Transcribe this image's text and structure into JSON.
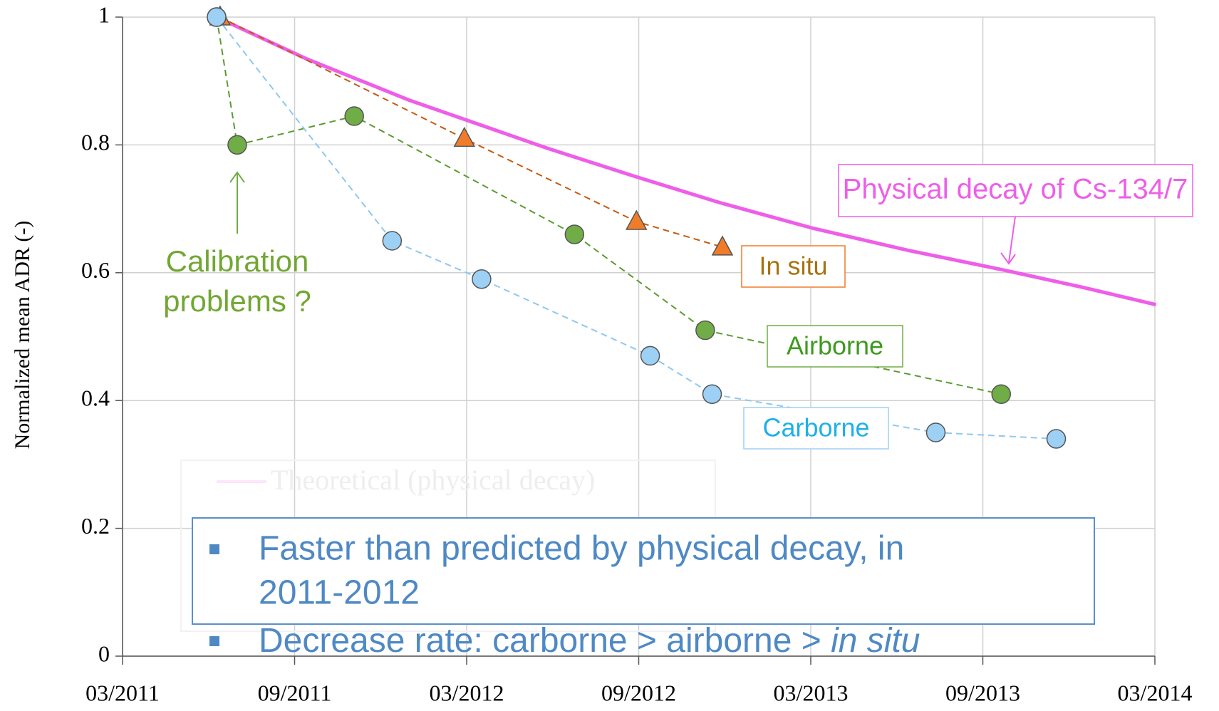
{
  "chart_data": {
    "type": "line",
    "y_label": "Normalized mean ADR (-)",
    "xlim": [
      2011.1667,
      2014.1667
    ],
    "xticks": [
      {
        "value": 2011.1667,
        "label": "03/2011"
      },
      {
        "value": 2011.6667,
        "label": "09/2011"
      },
      {
        "value": 2012.1667,
        "label": "03/2012"
      },
      {
        "value": 2012.6667,
        "label": "09/2012"
      },
      {
        "value": 2013.1667,
        "label": "03/2013"
      },
      {
        "value": 2013.6667,
        "label": "09/2013"
      },
      {
        "value": 2014.1667,
        "label": "03/2014"
      }
    ],
    "ylim": [
      0,
      1
    ],
    "yticks": [
      0,
      0.2,
      0.4,
      0.6,
      0.8,
      1
    ],
    "grid": true,
    "series": [
      {
        "name": "Theoretical  (physical decay)",
        "color": "#ee5ee8",
        "marker": "none",
        "x": [
          2011.44,
          2011.7,
          2012.0,
          2012.16,
          2012.4,
          2012.66,
          2012.9,
          2013.17,
          2013.45,
          2013.72,
          2013.95,
          2014.17
        ],
        "values": [
          1.0,
          0.935,
          0.87,
          0.84,
          0.795,
          0.75,
          0.71,
          0.67,
          0.635,
          0.605,
          0.578,
          0.55
        ]
      },
      {
        "name": "In situ",
        "color": "#f07c2a",
        "marker": "triangle",
        "x": [
          2011.45,
          2012.16,
          2012.66,
          2012.91
        ],
        "values": [
          1.0,
          0.81,
          0.68,
          0.64
        ]
      },
      {
        "name": "Airborne",
        "color": "#70ad47",
        "marker": "circle",
        "x": [
          2011.44,
          2011.5,
          2011.84,
          2012.48,
          2012.86,
          2013.72
        ],
        "values": [
          1.0,
          0.8,
          0.845,
          0.66,
          0.51,
          0.41
        ]
      },
      {
        "name": "Carborne",
        "color": "#9dd0f5",
        "marker": "circle",
        "x": [
          2011.44,
          2011.95,
          2012.21,
          2012.7,
          2012.88,
          2013.53,
          2013.88
        ],
        "values": [
          1.0,
          0.65,
          0.59,
          0.47,
          0.41,
          0.35,
          0.34
        ]
      }
    ],
    "annotations": [
      "Calibration",
      "problems ?",
      "Physical decay of Cs-134/7"
    ],
    "bullets": [
      {
        "lines": [
          "Faster than predicted by physical decay, in",
          "2011-2012"
        ]
      },
      {
        "text": "Decrease rate: carborne > airborne > ",
        "italic": "in situ"
      }
    ]
  }
}
